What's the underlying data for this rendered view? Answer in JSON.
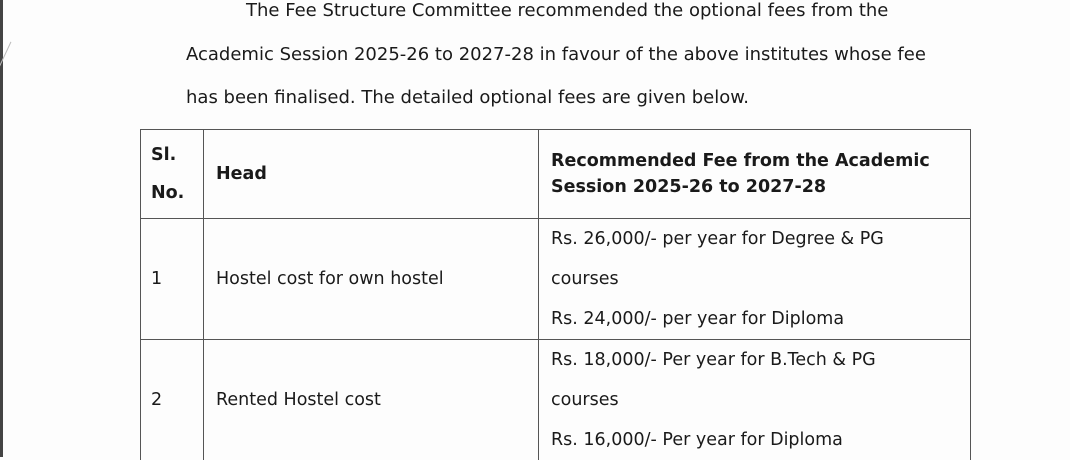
{
  "paragraph": {
    "line1": "The Fee Structure Committee recommended the optional fees from the",
    "line2": "Academic Session 2025-26 to 2027-28 in favour of the above institutes whose fee",
    "line3": "has been finalised. The detailed optional fees are given below."
  },
  "table": {
    "headers": {
      "sl_line1": "Sl.",
      "sl_line2": "No.",
      "head": "Head",
      "fee_line1": "Recommended Fee from the Academic",
      "fee_line2": "Session 2025-26 to 2027-28"
    },
    "rows": [
      {
        "sl": "1",
        "head": "Hostel cost for own hostel",
        "fee": [
          "Rs. 26,000/- per year for Degree & PG",
          "courses",
          "Rs.  24,000/- per year for Diploma"
        ]
      },
      {
        "sl": "2",
        "head": "Rented Hostel cost",
        "fee": [
          "Rs. 18,000/- Per year for B.Tech & PG",
          "courses",
          "Rs. 16,000/-  Per year for Diploma"
        ]
      }
    ]
  }
}
